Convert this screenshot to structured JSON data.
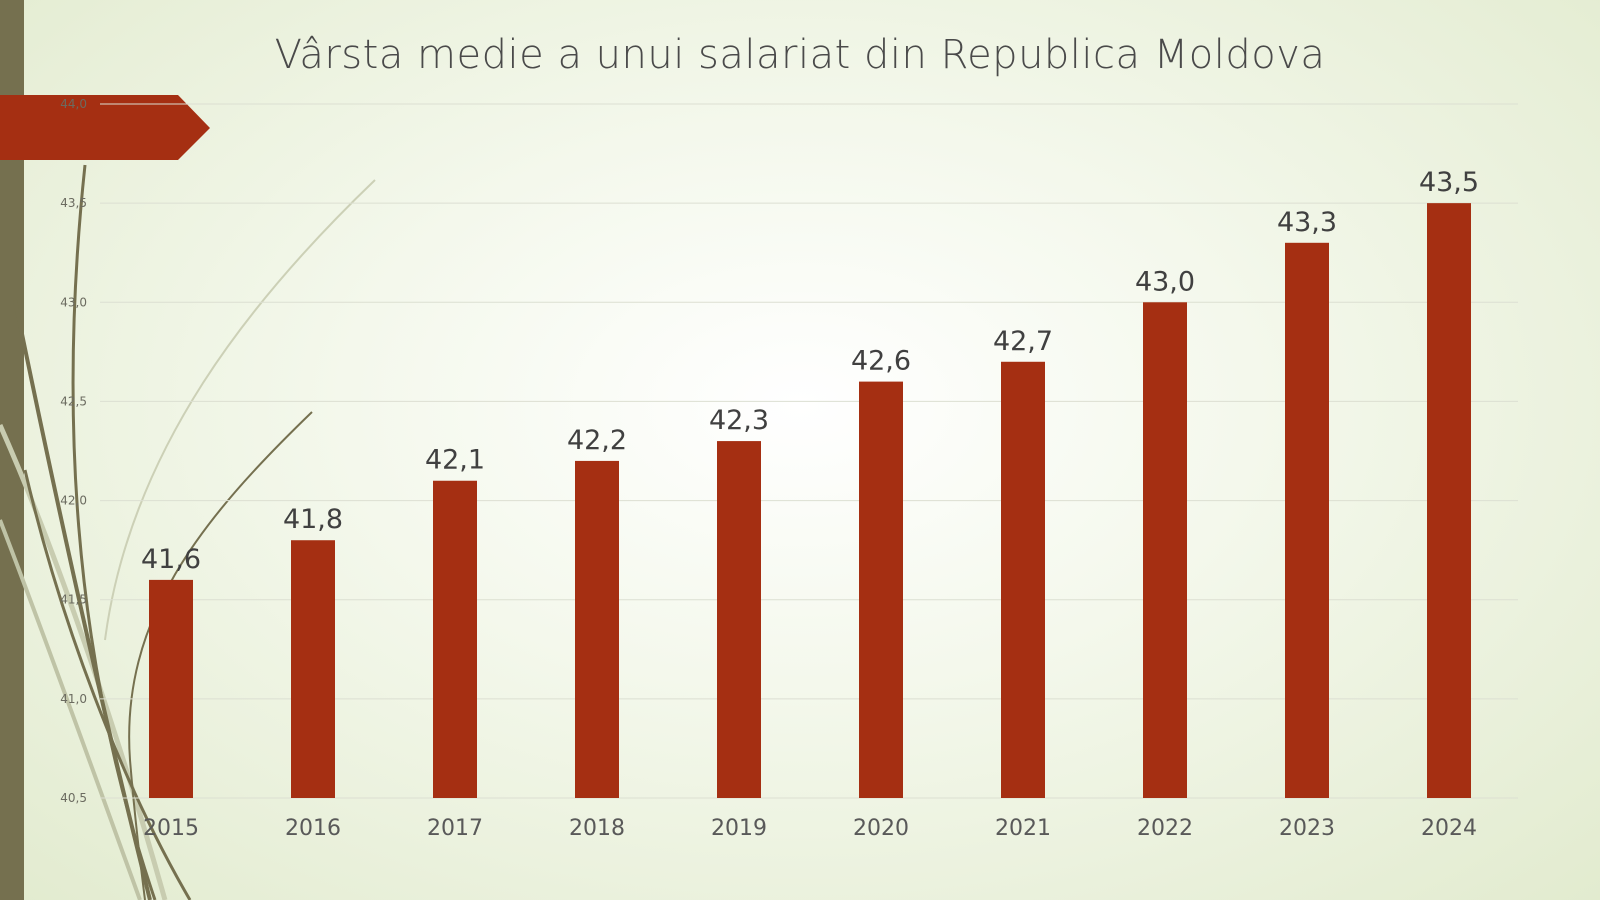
{
  "chart_data": {
    "type": "bar",
    "title": "Vârsta medie a unui salariat din Republica Moldova",
    "categories": [
      "2015",
      "2016",
      "2017",
      "2018",
      "2019",
      "2020",
      "2021",
      "2022",
      "2023",
      "2024"
    ],
    "values": [
      41.6,
      41.8,
      42.1,
      42.2,
      42.3,
      42.6,
      42.7,
      43.0,
      43.3,
      43.5
    ],
    "data_labels": [
      "41,6",
      "41,8",
      "42,1",
      "42,2",
      "42,3",
      "42,6",
      "42,7",
      "43,0",
      "43,3",
      "43,5"
    ],
    "ylim": [
      40.5,
      44.0
    ],
    "yticks": [
      40.5,
      41.0,
      41.5,
      42.0,
      42.5,
      43.0,
      43.5,
      44.0
    ],
    "ytick_labels": [
      "40,5",
      "41,0",
      "41,5",
      "42,0",
      "42,5",
      "43,0",
      "43,5",
      "44,0"
    ],
    "xlabel": "",
    "ylabel": "",
    "grid": true,
    "bar_color": "#a52f12"
  }
}
